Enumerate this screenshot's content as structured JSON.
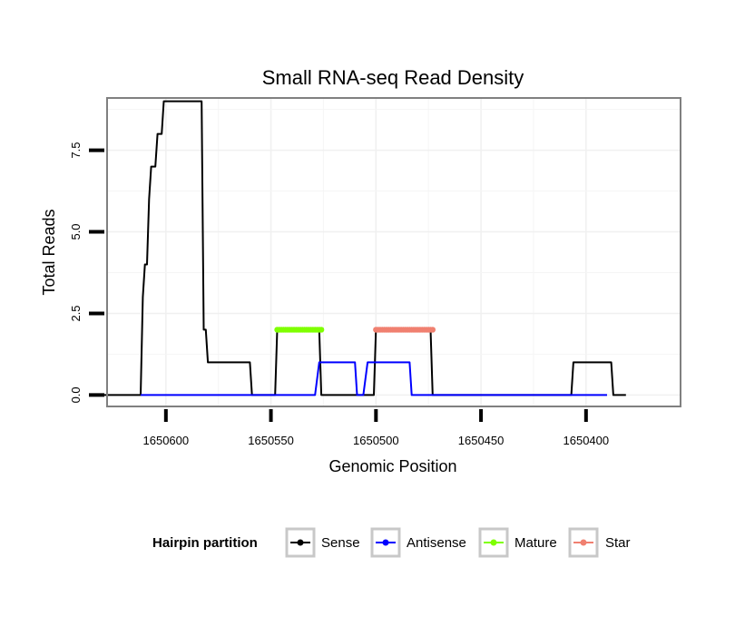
{
  "chart_data": {
    "type": "line",
    "title": "Small RNA-seq Read Density",
    "xlabel": "Genomic Position",
    "ylabel": "Total Reads",
    "x_reversed": true,
    "xlim": [
      1650628,
      1650355
    ],
    "ylim": [
      -0.35,
      9.1
    ],
    "x_ticks": [
      1650600,
      1650550,
      1650500,
      1650450,
      1650400
    ],
    "x_tick_labels": [
      "1650600",
      "1650550",
      "1650500",
      "1650450",
      "1650400"
    ],
    "y_ticks": [
      0,
      2.5,
      5,
      7.5
    ],
    "y_tick_labels": [
      "0.0",
      "2.5",
      "5.0",
      "7.5"
    ],
    "grid": true,
    "legend": {
      "title": "Hairpin partition",
      "position": "bottom",
      "entries": [
        "Sense",
        "Antisense",
        "Mature",
        "Star"
      ]
    },
    "series": [
      {
        "name": "Sense",
        "color": "#000000",
        "points": [
          [
            1650630,
            0
          ],
          [
            1650612,
            0
          ],
          [
            1650611,
            3
          ],
          [
            1650610,
            4
          ],
          [
            1650609,
            4
          ],
          [
            1650608,
            6
          ],
          [
            1650607,
            7
          ],
          [
            1650606,
            7
          ],
          [
            1650605,
            7
          ],
          [
            1650604,
            8
          ],
          [
            1650603,
            8
          ],
          [
            1650602,
            8
          ],
          [
            1650601,
            9
          ],
          [
            1650600,
            9
          ],
          [
            1650599,
            9
          ],
          [
            1650583,
            9
          ],
          [
            1650582,
            2
          ],
          [
            1650581,
            2
          ],
          [
            1650580,
            1
          ],
          [
            1650579,
            1
          ],
          [
            1650560,
            1
          ],
          [
            1650559,
            0
          ],
          [
            1650548,
            0
          ],
          [
            1650547,
            2
          ],
          [
            1650546,
            2
          ],
          [
            1650527,
            2
          ],
          [
            1650526,
            0
          ],
          [
            1650501,
            0
          ],
          [
            1650500,
            2
          ],
          [
            1650499,
            2
          ],
          [
            1650474,
            2
          ],
          [
            1650473,
            0
          ],
          [
            1650407,
            0
          ],
          [
            1650406,
            1
          ],
          [
            1650405,
            1
          ],
          [
            1650388,
            1
          ],
          [
            1650387,
            0
          ],
          [
            1650381,
            0
          ]
        ]
      },
      {
        "name": "Antisense",
        "color": "#0000ff",
        "points": [
          [
            1650612,
            0
          ],
          [
            1650529,
            0
          ],
          [
            1650527,
            1
          ],
          [
            1650526,
            1
          ],
          [
            1650510,
            1
          ],
          [
            1650509,
            0
          ],
          [
            1650506,
            0
          ],
          [
            1650504,
            1
          ],
          [
            1650503,
            1
          ],
          [
            1650484,
            1
          ],
          [
            1650483,
            0
          ],
          [
            1650390,
            0
          ]
        ]
      },
      {
        "name": "Mature",
        "color": "#7fff00",
        "points": [
          [
            1650547,
            2
          ],
          [
            1650526,
            2
          ]
        ]
      },
      {
        "name": "Star",
        "color": "#f08070",
        "points": [
          [
            1650500,
            2
          ],
          [
            1650473,
            2
          ]
        ]
      }
    ]
  }
}
